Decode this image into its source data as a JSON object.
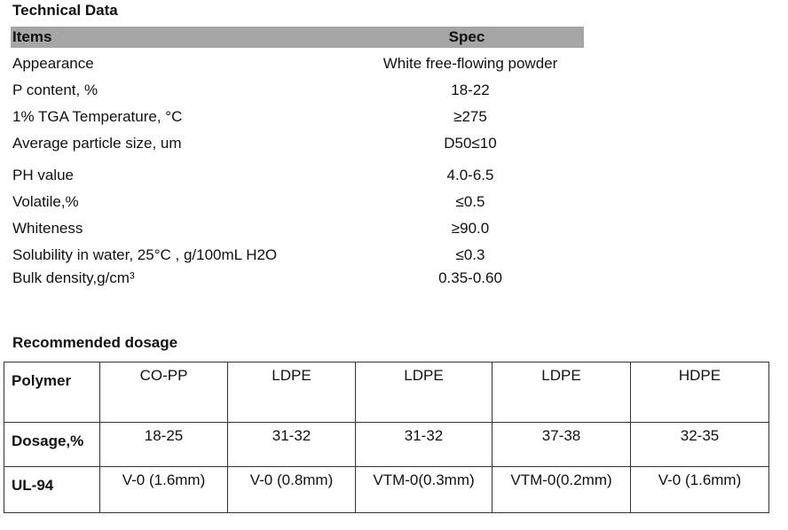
{
  "technical_data": {
    "title": "Technical Data",
    "header": [
      "Items",
      "Spec"
    ],
    "rows": [
      [
        "Appearance",
        "White free-flowing powder"
      ],
      [
        "P content, %",
        "18-22"
      ],
      [
        "1% TGA Temperature, °C",
        "≥275"
      ],
      [
        "Average particle size, um",
        "D50≤10"
      ],
      [
        "PH value",
        "4.0-6.5"
      ],
      [
        "Volatile,%",
        "≤0.5"
      ],
      [
        "Whiteness",
        "≥90.0"
      ],
      [
        "Solubility in water, 25°C , g/100mL H2O",
        "≤0.3"
      ],
      [
        "Bulk density,g/cm³",
        "0.35-0.60"
      ]
    ]
  },
  "recommended_dosage": {
    "title": "Recommended dosage",
    "rows": [
      [
        "Polymer",
        "CO-PP",
        "LDPE",
        "LDPE",
        "LDPE",
        "HDPE"
      ],
      [
        "Dosage,%",
        "18-25",
        "31-32",
        "31-32",
        "37-38",
        "32-35"
      ],
      [
        "UL-94",
        "V-0 (1.6mm)",
        "V-0 (0.8mm)",
        "VTM-0(0.3mm)",
        "VTM-0(0.2mm)",
        "V-0 (1.6mm)"
      ]
    ]
  }
}
